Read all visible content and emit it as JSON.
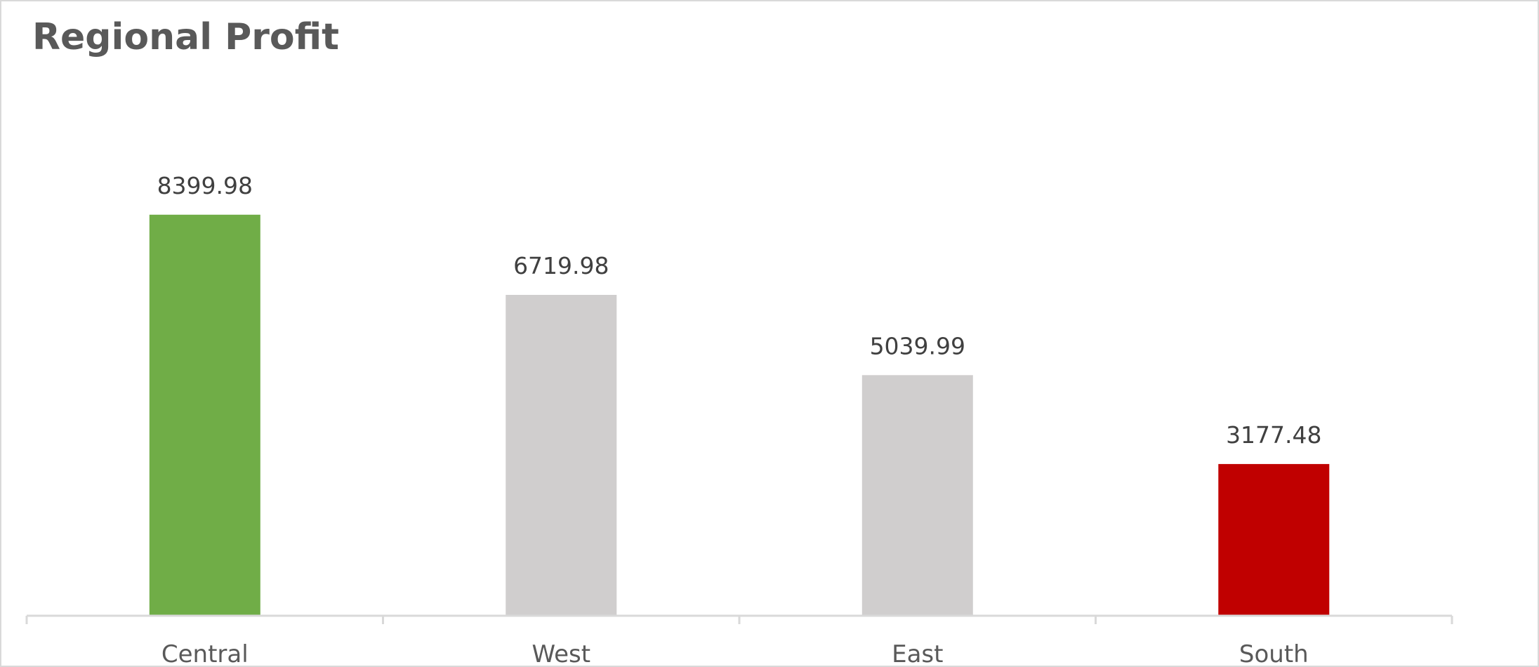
{
  "chart_data": {
    "type": "bar",
    "title": "Regional Profit",
    "categories": [
      "Central",
      "West",
      "East",
      "South"
    ],
    "values": [
      8399.98,
      6719.98,
      5039.99,
      3177.48
    ],
    "data_labels": [
      "8399.98",
      "6719.98",
      "5039.99",
      "3177.48"
    ],
    "bar_colors": [
      "#70ad47",
      "#d0cece",
      "#d0cece",
      "#c00000"
    ],
    "ylim": [
      0,
      10000
    ],
    "grid": false,
    "legend": "none",
    "xlabel": "",
    "ylabel": ""
  },
  "colors": {
    "axis": "#d9d9d9",
    "label_text": "#404040",
    "tick_text": "#595959",
    "title_text": "#595959"
  }
}
